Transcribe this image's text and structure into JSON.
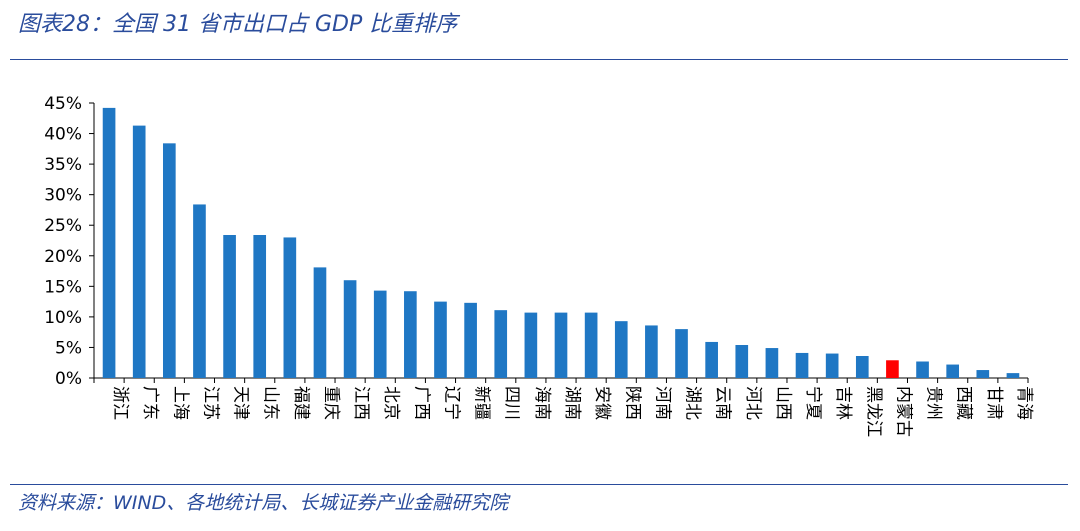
{
  "header": {
    "title": "图表28：全国 31 省市出口占 GDP 比重排序"
  },
  "footer": {
    "source": "资料来源：WIND、各地统计局、长城证券产业金融研究院"
  },
  "colors": {
    "bar": "#1f77c4",
    "highlight": "#ff0000",
    "axis": "#000000",
    "rule": "#2a4c9c"
  },
  "chart_data": {
    "type": "bar",
    "title": "",
    "xlabel": "",
    "ylabel": "",
    "ylim": [
      0,
      45
    ],
    "yticks": [
      "0%",
      "5%",
      "10%",
      "15%",
      "20%",
      "25%",
      "30%",
      "35%",
      "40%",
      "45%"
    ],
    "grid": false,
    "categories": [
      "浙江",
      "广东",
      "上海",
      "江苏",
      "天津",
      "山东",
      "福建",
      "重庆",
      "江西",
      "北京",
      "广西",
      "辽宁",
      "新疆",
      "四川",
      "海南",
      "湖南",
      "安徽",
      "陕西",
      "河南",
      "湖北",
      "云南",
      "河北",
      "山西",
      "宁夏",
      "吉林",
      "黑龙江",
      "内蒙古",
      "贵州",
      "西藏",
      "甘肃",
      "青海"
    ],
    "values": [
      44.2,
      41.3,
      38.4,
      28.4,
      23.4,
      23.4,
      23.0,
      18.1,
      16.0,
      14.3,
      14.2,
      12.5,
      12.3,
      11.1,
      10.7,
      10.7,
      10.7,
      9.3,
      8.6,
      8.0,
      5.9,
      5.4,
      4.9,
      4.1,
      4.0,
      3.6,
      2.9,
      2.7,
      2.2,
      1.3,
      0.8
    ],
    "highlight": [
      "内蒙古"
    ]
  }
}
